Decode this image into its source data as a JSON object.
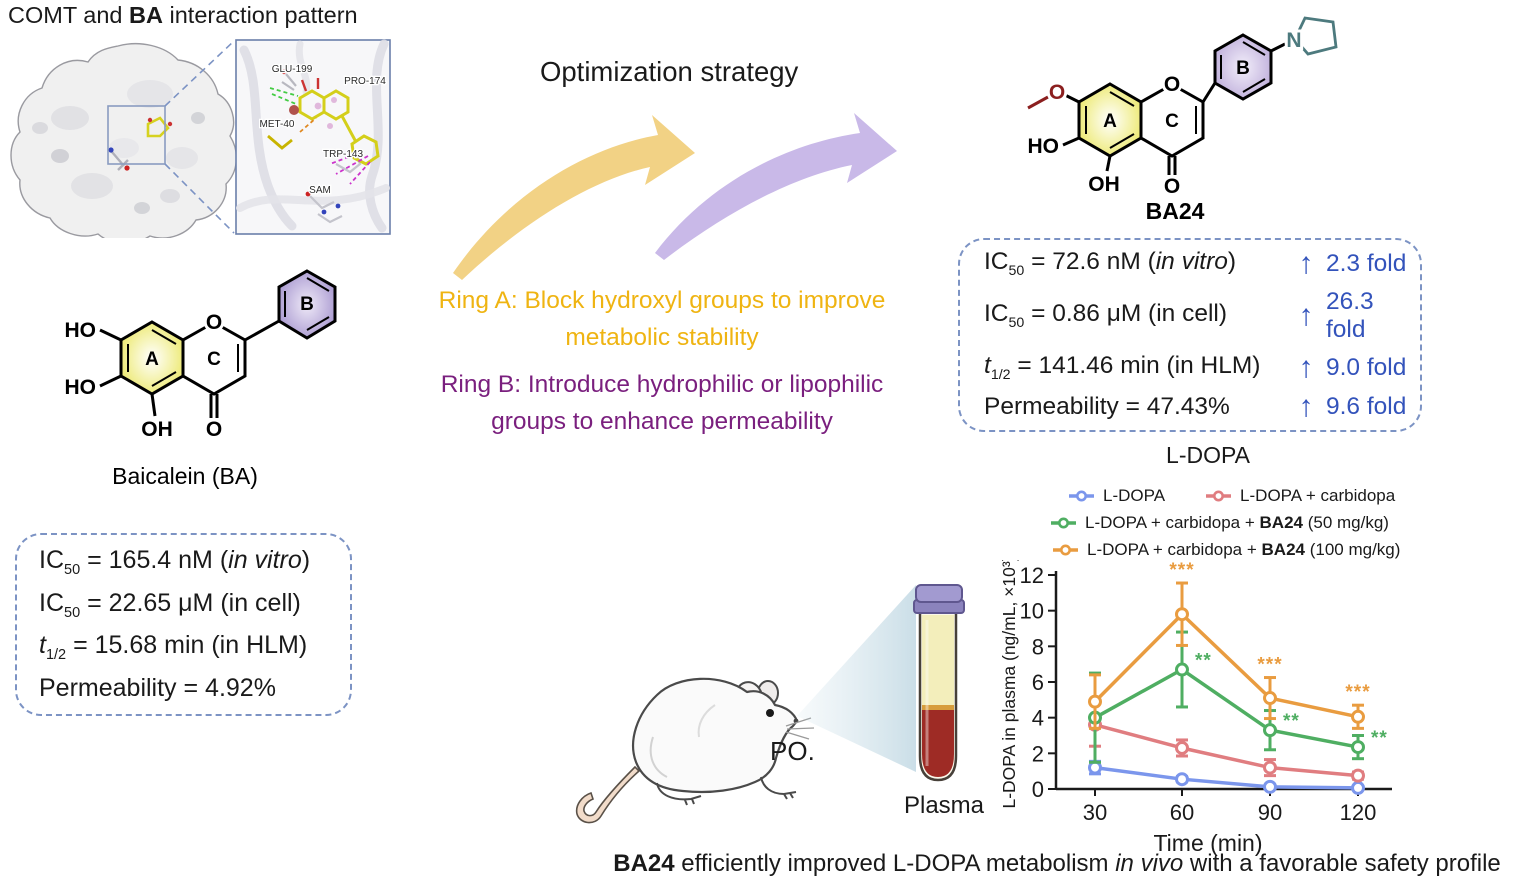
{
  "header": {
    "title_segments": [
      {
        "t": "COMT and "
      },
      {
        "t": "BA",
        "s": "b"
      },
      {
        "t": " interaction pattern"
      }
    ]
  },
  "protein": {
    "residues": [
      "GLU-199",
      "PRO-174",
      "MET-40",
      "TRP-143",
      "SAM"
    ]
  },
  "baicalein": {
    "caption": "Baicalein (BA)",
    "rings": {
      "a": "A",
      "b": "B",
      "c": "C"
    },
    "atoms": {
      "ho7": "HO",
      "ho6": "HO",
      "oh5": "OH",
      "o1": "O",
      "o4": "O"
    }
  },
  "ba24": {
    "caption": "BA24",
    "rings": {
      "a": "A",
      "b": "B",
      "c": "C"
    },
    "atoms": {
      "ome_o": "O",
      "ho6": "HO",
      "oh5": "OH",
      "o1": "O",
      "o4": "O",
      "n": "N"
    }
  },
  "left_box": {
    "rows": [
      [
        {
          "t": "IC"
        },
        {
          "t": "50",
          "s": "sub"
        },
        {
          "t": " = 165.4 nM ("
        },
        {
          "t": "in vitro",
          "s": "i"
        },
        {
          "t": ")"
        }
      ],
      [
        {
          "t": "IC"
        },
        {
          "t": "50",
          "s": "sub"
        },
        {
          "t": " = 22.65 μM (in cell)"
        }
      ],
      [
        {
          "t": "t",
          "s": "i"
        },
        {
          "t": "1/2",
          "s": "sub"
        },
        {
          "t": " = 15.68 min (in HLM)"
        }
      ],
      [
        {
          "t": "Permeability = 4.92%"
        }
      ]
    ]
  },
  "strategy": {
    "title": "Optimization strategy",
    "ring_a_line1": "Ring A: Block hydroxyl groups to improve",
    "ring_a_line2": "metabolic stability",
    "ring_b_line1": "Ring B: Introduce hydrophilic or lipophilic",
    "ring_b_line2": "groups to enhance permeability",
    "ring_a_color": "#efb412",
    "ring_b_color": "#7a1f7e"
  },
  "right_box": {
    "arrow": "↑",
    "rows": [
      {
        "segments": [
          {
            "t": "IC"
          },
          {
            "t": "50",
            "s": "sub"
          },
          {
            "t": " = 72.6 nM ("
          },
          {
            "t": "in vitro",
            "s": "i"
          },
          {
            "t": ")"
          }
        ],
        "fold": "2.3 fold"
      },
      {
        "segments": [
          {
            "t": "IC"
          },
          {
            "t": "50",
            "s": "sub"
          },
          {
            "t": " = 0.86 μM (in cell)"
          }
        ],
        "fold": "26.3 fold"
      },
      {
        "segments": [
          {
            "t": "t",
            "s": "i"
          },
          {
            "t": "1/2",
            "s": "sub"
          },
          {
            "t": " = 141.46 min (in HLM)"
          }
        ],
        "fold": "9.0 fold"
      },
      {
        "segments": [
          {
            "t": "Permeability = 47.43%"
          }
        ],
        "fold": "9.6 fold"
      }
    ]
  },
  "pk": {
    "po": "PO.",
    "plasma": "Plasma"
  },
  "chart_data": {
    "type": "line",
    "title": "L-DOPA",
    "x": [
      30,
      60,
      90,
      120
    ],
    "xlabel": "Time (min)",
    "ylabel": "L-DOPA in plasma (ng/mL, ×10³)",
    "ylim": [
      0,
      12
    ],
    "yticks": [
      0,
      2,
      4,
      6,
      8,
      10,
      12
    ],
    "legend_position": "top",
    "grid": false,
    "series": [
      {
        "name": "L-DOPA",
        "legend": {
          "pre": "L-DOPA",
          "bold": "",
          "post": ""
        },
        "color": "#7b96ec",
        "values": [
          1.2,
          0.55,
          0.12,
          0.06
        ],
        "errors": [
          0.35,
          0.15,
          0.1,
          0.06
        ],
        "sig": [
          "",
          "",
          "",
          ""
        ],
        "sig_pos": "right"
      },
      {
        "name": "L-DOPA + carbidopa",
        "legend": {
          "pre": "L-DOPA + carbidopa",
          "bold": "",
          "post": ""
        },
        "color": "#e07d80",
        "values": [
          3.6,
          2.3,
          1.2,
          0.75
        ],
        "errors": [
          1.2,
          0.45,
          0.45,
          0.2
        ],
        "sig": [
          "",
          "",
          "",
          ""
        ],
        "sig_pos": "right"
      },
      {
        "name": "L-DOPA + carbidopa + BA24 (50 mg/kg)",
        "legend": {
          "pre": "L-DOPA + carbidopa + ",
          "bold": "BA24",
          "post": " (50 mg/kg)"
        },
        "color": "#4fae62",
        "values": [
          4.0,
          6.7,
          3.3,
          2.35
        ],
        "errors": [
          2.5,
          2.1,
          1.1,
          0.65
        ],
        "sig": [
          "",
          "**",
          "**",
          "**"
        ],
        "sig_pos": "right"
      },
      {
        "name": "L-DOPA + carbidopa + BA24 (100 mg/kg)",
        "legend": {
          "pre": "L-DOPA + carbidopa + ",
          "bold": "BA24",
          "post": " (100 mg/kg)"
        },
        "color": "#e99c40",
        "values": [
          4.9,
          9.8,
          5.1,
          4.05
        ],
        "errors": [
          1.5,
          1.75,
          1.15,
          0.65
        ],
        "sig": [
          "",
          "***",
          "***",
          "***"
        ],
        "sig_pos": "above"
      }
    ]
  },
  "footer": {
    "caption_segments": [
      {
        "t": "BA24",
        "s": "b"
      },
      {
        "t": " efficiently improved L-DOPA metabolism "
      },
      {
        "t": "in vivo",
        "s": "i"
      },
      {
        "t": " with a favorable safety profile"
      }
    ]
  },
  "colors": {
    "dash_border": "#7c93c4",
    "fold_blue": "#3353bb",
    "arrow_yellow": "#f2d285",
    "arrow_purple": "#c9b9e8",
    "ring_a_fill": "#eeeb7d",
    "ring_b_fill": "#b0a1d4",
    "pyrrolidine": "#4d7a7e",
    "methoxy": "#8b1f1f",
    "series_blue": "#7b96ec",
    "series_red": "#e07d80",
    "series_green": "#4fae62",
    "series_orange": "#e99c40"
  }
}
